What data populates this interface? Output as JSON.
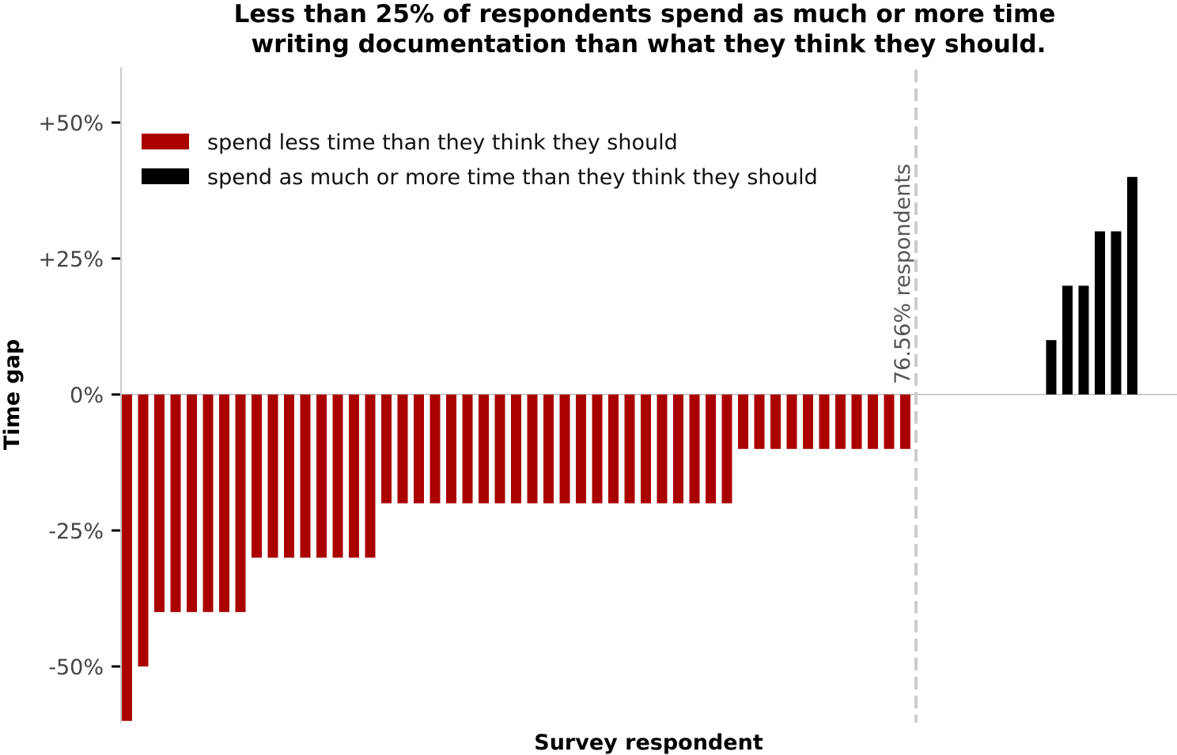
{
  "chart_data": {
    "type": "bar",
    "title": "Less than 25% of respondents spend as much or more time writing documentation than what they think they should.",
    "title_lines": [
      "Less than 25% of respondents spend as much or more time",
      "writing documentation than what they think they should."
    ],
    "xlabel": "Survey respondent",
    "ylabel": "Time gap",
    "ylim": [
      -60,
      60
    ],
    "yticks": [
      {
        "value": 50,
        "label": "+50%"
      },
      {
        "value": 25,
        "label": "+25%"
      },
      {
        "value": 0,
        "label": "0%"
      },
      {
        "value": -25,
        "label": "-25%"
      },
      {
        "value": -50,
        "label": "-50%"
      }
    ],
    "grid": false,
    "legend_position": "top-left",
    "series": [
      {
        "name": "spend less time than they think they should",
        "color": "#aa0000",
        "values": [
          -60,
          -50,
          -40,
          -40,
          -40,
          -40,
          -40,
          -40,
          -30,
          -30,
          -30,
          -30,
          -30,
          -30,
          -30,
          -30,
          -20,
          -20,
          -20,
          -20,
          -20,
          -20,
          -20,
          -20,
          -20,
          -20,
          -20,
          -20,
          -20,
          -20,
          -20,
          -20,
          -20,
          -20,
          -20,
          -20,
          -20,
          -20,
          -10,
          -10,
          -10,
          -10,
          -10,
          -10,
          -10,
          -10,
          -10,
          -10,
          -10
        ]
      },
      {
        "name": "spend as much or more time than they think they should",
        "color": "#000000",
        "values": [
          0,
          0,
          0,
          0,
          0,
          0,
          0,
          0,
          10,
          20,
          20,
          30,
          30,
          40,
          0
        ]
      }
    ],
    "annotation": {
      "text": "76.56% respondents",
      "line_style": "dashed",
      "line_color": "#cccccc"
    }
  }
}
